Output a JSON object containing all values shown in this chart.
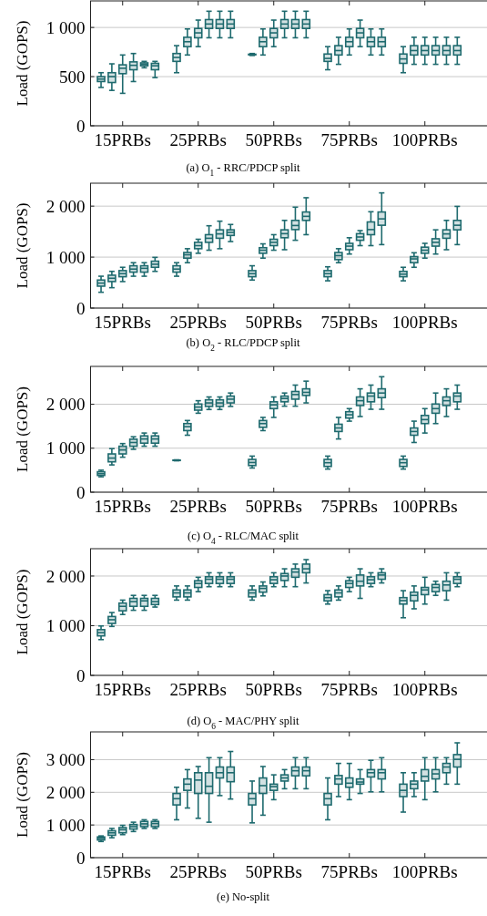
{
  "chart_data": [
    {
      "type": "box",
      "title": "(a) O$_{1}$ - RRC/PDCP split",
      "ylabel": "Load (GOPS)",
      "categories": [
        null,
        null,
        "15PRBs",
        null,
        null,
        null,
        null,
        null,
        null,
        "25PRBs",
        null,
        null,
        null,
        null,
        null,
        null,
        "50PRBs",
        null,
        null,
        null,
        null,
        null,
        null,
        "75PRBs",
        null,
        null,
        null,
        null,
        null,
        null,
        "100PRBs",
        null,
        null,
        null,
        null
      ],
      "ylim": [
        0,
        1270
      ],
      "yticks": [
        {
          "value": 0,
          "label": "0"
        },
        500,
        {
          "value": 1000,
          "label": "1 000"
        }
      ],
      "grid": "y",
      "color": "#1e6a6e",
      "boxes": [
        {
          "low": 390,
          "q1": 450,
          "median": 475,
          "q3": 500,
          "high": 540
        },
        {
          "low": 360,
          "q1": 440,
          "median": 500,
          "q3": 540,
          "high": 630
        },
        {
          "low": 330,
          "q1": 530,
          "median": 585,
          "q3": 620,
          "high": 720
        },
        {
          "low": 450,
          "q1": 570,
          "median": 615,
          "q3": 650,
          "high": 735
        },
        {
          "low": 590,
          "q1": 610,
          "median": 625,
          "q3": 640,
          "high": 655
        },
        {
          "low": 490,
          "q1": 570,
          "median": 610,
          "q3": 635,
          "high": 655
        },
        null,
        {
          "low": 540,
          "q1": 655,
          "median": 695,
          "q3": 735,
          "high": 815
        },
        {
          "low": 720,
          "q1": 805,
          "median": 855,
          "q3": 900,
          "high": 985
        },
        {
          "low": 805,
          "q1": 895,
          "median": 945,
          "q3": 990,
          "high": 1075
        },
        {
          "low": 895,
          "q1": 990,
          "median": 1035,
          "q3": 1080,
          "high": 1165
        },
        {
          "low": 895,
          "q1": 990,
          "median": 1035,
          "q3": 1080,
          "high": 1165
        },
        {
          "low": 895,
          "q1": 990,
          "median": 1035,
          "q3": 1080,
          "high": 1165
        },
        null,
        {
          "low": 715,
          "q1": 722,
          "median": 725,
          "q3": 728,
          "high": 735
        },
        {
          "low": 720,
          "q1": 805,
          "median": 855,
          "q3": 900,
          "high": 985
        },
        {
          "low": 805,
          "q1": 895,
          "median": 945,
          "q3": 990,
          "high": 1075
        },
        {
          "low": 895,
          "q1": 990,
          "median": 1035,
          "q3": 1080,
          "high": 1165
        },
        {
          "low": 895,
          "q1": 990,
          "median": 1035,
          "q3": 1080,
          "high": 1165
        },
        {
          "low": 895,
          "q1": 990,
          "median": 1035,
          "q3": 1080,
          "high": 1165
        },
        null,
        {
          "low": 570,
          "q1": 655,
          "median": 685,
          "q3": 730,
          "high": 805
        },
        {
          "low": 625,
          "q1": 720,
          "median": 765,
          "q3": 815,
          "high": 900
        },
        {
          "low": 720,
          "q1": 805,
          "median": 855,
          "q3": 900,
          "high": 985
        },
        {
          "low": 805,
          "q1": 895,
          "median": 945,
          "q3": 990,
          "high": 1075
        },
        {
          "low": 720,
          "q1": 805,
          "median": 855,
          "q3": 900,
          "high": 985
        },
        {
          "low": 720,
          "q1": 805,
          "median": 855,
          "q3": 900,
          "high": 985
        },
        null,
        {
          "low": 540,
          "q1": 635,
          "median": 680,
          "q3": 730,
          "high": 805
        },
        {
          "low": 625,
          "q1": 720,
          "median": 765,
          "q3": 815,
          "high": 900
        },
        {
          "low": 625,
          "q1": 720,
          "median": 765,
          "q3": 815,
          "high": 900
        },
        {
          "low": 625,
          "q1": 720,
          "median": 765,
          "q3": 815,
          "high": 900
        },
        {
          "low": 625,
          "q1": 720,
          "median": 765,
          "q3": 815,
          "high": 900
        },
        {
          "low": 625,
          "q1": 720,
          "median": 765,
          "q3": 815,
          "high": 900
        },
        null
      ]
    },
    {
      "type": "box",
      "title": "(b) O$_{2}$ - RLC/PDCP split",
      "ylabel": "Load (GOPS)",
      "categories": [
        null,
        null,
        "15PRBs",
        null,
        null,
        null,
        null,
        null,
        null,
        "25PRBs",
        null,
        null,
        null,
        null,
        null,
        null,
        "50PRBs",
        null,
        null,
        null,
        null,
        null,
        null,
        "75PRBs",
        null,
        null,
        null,
        null,
        null,
        null,
        "100PRBs",
        null,
        null,
        null,
        null
      ],
      "ylim": [
        0,
        2450
      ],
      "yticks": [
        {
          "value": 0,
          "label": "0"
        },
        {
          "value": 1000,
          "label": "1 000"
        },
        {
          "value": 2000,
          "label": "2 000"
        }
      ],
      "grid": "y",
      "color": "#1e6a6e",
      "boxes": [
        {
          "low": 310,
          "q1": 430,
          "median": 490,
          "q3": 550,
          "high": 625
        },
        {
          "low": 400,
          "q1": 520,
          "median": 585,
          "q3": 645,
          "high": 720
        },
        {
          "low": 520,
          "q1": 615,
          "median": 675,
          "q3": 735,
          "high": 800
        },
        {
          "low": 625,
          "q1": 705,
          "median": 765,
          "q3": 830,
          "high": 890
        },
        {
          "low": 625,
          "q1": 705,
          "median": 780,
          "q3": 830,
          "high": 890
        },
        {
          "low": 720,
          "q1": 800,
          "median": 860,
          "q3": 920,
          "high": 995
        },
        null,
        {
          "low": 625,
          "q1": 705,
          "median": 765,
          "q3": 830,
          "high": 890
        },
        {
          "low": 890,
          "q1": 980,
          "median": 1045,
          "q3": 1090,
          "high": 1165
        },
        {
          "low": 1075,
          "q1": 1165,
          "median": 1225,
          "q3": 1290,
          "high": 1350
        },
        {
          "low": 1135,
          "q1": 1290,
          "median": 1370,
          "q3": 1440,
          "high": 1615
        },
        {
          "low": 1165,
          "q1": 1370,
          "median": 1455,
          "q3": 1535,
          "high": 1705
        },
        {
          "low": 1305,
          "q1": 1425,
          "median": 1485,
          "q3": 1535,
          "high": 1640
        },
        null,
        {
          "low": 550,
          "q1": 615,
          "median": 675,
          "q3": 735,
          "high": 830
        },
        {
          "low": 980,
          "q1": 1075,
          "median": 1135,
          "q3": 1185,
          "high": 1260
        },
        {
          "low": 1135,
          "q1": 1225,
          "median": 1290,
          "q3": 1350,
          "high": 1440
        },
        {
          "low": 1145,
          "q1": 1380,
          "median": 1460,
          "q3": 1535,
          "high": 1720
        },
        {
          "low": 1330,
          "q1": 1540,
          "median": 1620,
          "q3": 1720,
          "high": 1980
        },
        {
          "low": 1440,
          "q1": 1720,
          "median": 1800,
          "q3": 1885,
          "high": 2165
        },
        null,
        {
          "low": 535,
          "q1": 615,
          "median": 675,
          "q3": 735,
          "high": 810
        },
        {
          "low": 890,
          "q1": 950,
          "median": 1030,
          "q3": 1090,
          "high": 1165
        },
        {
          "low": 1060,
          "q1": 1145,
          "median": 1215,
          "q3": 1270,
          "high": 1380
        },
        {
          "low": 1225,
          "q1": 1330,
          "median": 1395,
          "q3": 1460,
          "high": 1520
        },
        {
          "low": 1225,
          "q1": 1440,
          "median": 1540,
          "q3": 1690,
          "high": 1890
        },
        {
          "low": 1245,
          "q1": 1625,
          "median": 1750,
          "q3": 1885,
          "high": 2260
        },
        null,
        {
          "low": 535,
          "q1": 615,
          "median": 665,
          "q3": 720,
          "high": 800
        },
        {
          "low": 800,
          "q1": 890,
          "median": 965,
          "q3": 1010,
          "high": 1085
        },
        {
          "low": 980,
          "q1": 1075,
          "median": 1135,
          "q3": 1195,
          "high": 1270
        },
        {
          "low": 1060,
          "q1": 1215,
          "median": 1290,
          "q3": 1360,
          "high": 1535
        },
        {
          "low": 1145,
          "q1": 1370,
          "median": 1455,
          "q3": 1535,
          "high": 1720
        },
        {
          "low": 1245,
          "q1": 1535,
          "median": 1625,
          "q3": 1720,
          "high": 1995
        },
        null
      ]
    },
    {
      "type": "box",
      "title": "(c) O$_{4}$ - RLC/MAC split",
      "ylabel": "Load (GOPS)",
      "categories": [
        null,
        null,
        "15PRBs",
        null,
        null,
        null,
        null,
        null,
        null,
        "25PRBs",
        null,
        null,
        null,
        null,
        null,
        null,
        "50PRBs",
        null,
        null,
        null,
        null,
        null,
        null,
        "75PRBs",
        null,
        null,
        null,
        null,
        null,
        null,
        "100PRBs",
        null,
        null,
        null,
        null
      ],
      "ylim": [
        0,
        2860
      ],
      "yticks": [
        {
          "value": 0,
          "label": "0"
        },
        {
          "value": 1000,
          "label": "1 000"
        },
        {
          "value": 2000,
          "label": "2 000"
        }
      ],
      "grid": "y",
      "color": "#1e6a6e",
      "boxes": [
        {
          "low": 350,
          "q1": 380,
          "median": 420,
          "q3": 465,
          "high": 500
        },
        {
          "low": 620,
          "q1": 690,
          "median": 775,
          "q3": 870,
          "high": 990
        },
        {
          "low": 795,
          "q1": 870,
          "median": 960,
          "q3": 1045,
          "high": 1105
        },
        {
          "low": 975,
          "q1": 1045,
          "median": 1130,
          "q3": 1205,
          "high": 1260
        },
        {
          "low": 1045,
          "q1": 1115,
          "median": 1210,
          "q3": 1280,
          "high": 1345
        },
        {
          "low": 1045,
          "q1": 1115,
          "median": 1210,
          "q3": 1280,
          "high": 1345
        },
        null,
        {
          "low": 715,
          "q1": 722,
          "median": 726,
          "q3": 730,
          "high": 735
        },
        {
          "low": 1295,
          "q1": 1400,
          "median": 1490,
          "q3": 1560,
          "high": 1630
        },
        {
          "low": 1795,
          "q1": 1865,
          "median": 1935,
          "q3": 2005,
          "high": 2080
        },
        {
          "low": 1880,
          "q1": 1950,
          "median": 2030,
          "q3": 2100,
          "high": 2165
        },
        {
          "low": 1880,
          "q1": 1950,
          "median": 2030,
          "q3": 2100,
          "high": 2165
        },
        {
          "low": 1950,
          "q1": 2030,
          "median": 2115,
          "q3": 2185,
          "high": 2255
        },
        null,
        {
          "low": 550,
          "q1": 605,
          "median": 675,
          "q3": 745,
          "high": 820
        },
        {
          "low": 1400,
          "q1": 1475,
          "median": 1560,
          "q3": 1630,
          "high": 1700
        },
        {
          "low": 1700,
          "q1": 1900,
          "median": 1985,
          "q3": 2055,
          "high": 2165
        },
        {
          "low": 1955,
          "q1": 2055,
          "median": 2130,
          "q3": 2185,
          "high": 2255
        },
        {
          "low": 1955,
          "q1": 2115,
          "median": 2220,
          "q3": 2290,
          "high": 2435
        },
        {
          "low": 2030,
          "q1": 2200,
          "median": 2270,
          "q3": 2350,
          "high": 2525
        },
        null,
        {
          "low": 525,
          "q1": 585,
          "median": 670,
          "q3": 745,
          "high": 820
        },
        {
          "low": 1210,
          "q1": 1380,
          "median": 1460,
          "q3": 1545,
          "high": 1700
        },
        {
          "low": 1615,
          "q1": 1685,
          "median": 1760,
          "q3": 1830,
          "high": 1900
        },
        {
          "low": 1720,
          "q1": 1970,
          "median": 2080,
          "q3": 2165,
          "high": 2350
        },
        {
          "low": 1885,
          "q1": 2055,
          "median": 2185,
          "q3": 2255,
          "high": 2435
        },
        {
          "low": 1885,
          "q1": 2150,
          "median": 2255,
          "q3": 2350,
          "high": 2625
        },
        null,
        {
          "low": 525,
          "q1": 585,
          "median": 670,
          "q3": 745,
          "high": 820
        },
        {
          "low": 1130,
          "q1": 1295,
          "median": 1380,
          "q3": 1460,
          "high": 1615
        },
        {
          "low": 1345,
          "q1": 1560,
          "median": 1650,
          "q3": 1745,
          "high": 1900
        },
        {
          "low": 1560,
          "q1": 1795,
          "median": 1900,
          "q3": 2005,
          "high": 2255
        },
        {
          "low": 1720,
          "q1": 1970,
          "median": 2080,
          "q3": 2165,
          "high": 2350
        },
        {
          "low": 1885,
          "q1": 2055,
          "median": 2185,
          "q3": 2255,
          "high": 2435
        },
        null
      ]
    },
    {
      "type": "box",
      "title": "(d) O$_{6}$ - MAC/PHY split",
      "ylabel": "Load (GOPS)",
      "categories": [
        null,
        null,
        "15PRBs",
        null,
        null,
        null,
        null,
        null,
        null,
        "25PRBs",
        null,
        null,
        null,
        null,
        null,
        null,
        "50PRBs",
        null,
        null,
        null,
        null,
        null,
        null,
        "75PRBs",
        null,
        null,
        null,
        null,
        null,
        null,
        "100PRBs",
        null,
        null,
        null,
        null
      ],
      "ylim": [
        0,
        2550
      ],
      "yticks": [
        {
          "value": 0,
          "label": "0"
        },
        {
          "value": 1000,
          "label": "1 000"
        },
        {
          "value": 2000,
          "label": "2 000"
        }
      ],
      "grid": "y",
      "color": "#1e6a6e",
      "boxes": [
        {
          "low": 720,
          "q1": 795,
          "median": 860,
          "q3": 920,
          "high": 995
        },
        {
          "low": 985,
          "q1": 1045,
          "median": 1120,
          "q3": 1185,
          "high": 1265
        },
        {
          "low": 1225,
          "q1": 1300,
          "median": 1390,
          "q3": 1455,
          "high": 1515
        },
        {
          "low": 1310,
          "q1": 1390,
          "median": 1485,
          "q3": 1550,
          "high": 1610
        },
        {
          "low": 1310,
          "q1": 1390,
          "median": 1500,
          "q3": 1550,
          "high": 1610
        },
        {
          "low": 1375,
          "q1": 1425,
          "median": 1485,
          "q3": 1550,
          "high": 1610
        },
        null,
        {
          "low": 1515,
          "q1": 1580,
          "median": 1660,
          "q3": 1720,
          "high": 1800
        },
        {
          "low": 1515,
          "q1": 1580,
          "median": 1660,
          "q3": 1720,
          "high": 1800
        },
        {
          "low": 1685,
          "q1": 1770,
          "median": 1850,
          "q3": 1905,
          "high": 1975
        },
        {
          "low": 1785,
          "q1": 1850,
          "median": 1935,
          "q3": 1985,
          "high": 2065
        },
        {
          "low": 1785,
          "q1": 1850,
          "median": 1935,
          "q3": 1985,
          "high": 2065
        },
        {
          "low": 1785,
          "q1": 1850,
          "median": 1935,
          "q3": 1985,
          "high": 2065
        },
        null,
        {
          "low": 1515,
          "q1": 1580,
          "median": 1660,
          "q3": 1720,
          "high": 1800
        },
        {
          "low": 1600,
          "q1": 1675,
          "median": 1750,
          "q3": 1800,
          "high": 1880
        },
        {
          "low": 1785,
          "q1": 1850,
          "median": 1925,
          "q3": 1985,
          "high": 2065
        },
        {
          "low": 1785,
          "q1": 1910,
          "median": 2000,
          "q3": 2050,
          "high": 2145
        },
        {
          "low": 1785,
          "q1": 1975,
          "median": 2080,
          "q3": 2145,
          "high": 2240
        },
        {
          "low": 1860,
          "q1": 2065,
          "median": 2145,
          "q3": 2240,
          "high": 2330
        },
        null,
        {
          "low": 1435,
          "q1": 1500,
          "median": 1565,
          "q3": 1625,
          "high": 1705
        },
        {
          "low": 1515,
          "q1": 1580,
          "median": 1660,
          "q3": 1720,
          "high": 1800
        },
        {
          "low": 1685,
          "q1": 1770,
          "median": 1850,
          "q3": 1905,
          "high": 1975
        },
        {
          "low": 1550,
          "q1": 1800,
          "median": 1895,
          "q3": 2020,
          "high": 2145
        },
        {
          "low": 1785,
          "q1": 1850,
          "median": 1925,
          "q3": 1985,
          "high": 2065
        },
        {
          "low": 1860,
          "q1": 1935,
          "median": 2020,
          "q3": 2065,
          "high": 2145
        },
        null,
        {
          "low": 1160,
          "q1": 1435,
          "median": 1505,
          "q3": 1565,
          "high": 1705
        },
        {
          "low": 1340,
          "q1": 1500,
          "median": 1610,
          "q3": 1675,
          "high": 1800
        },
        {
          "low": 1435,
          "q1": 1625,
          "median": 1720,
          "q3": 1770,
          "high": 1975
        },
        {
          "low": 1610,
          "q1": 1685,
          "median": 1770,
          "q3": 1830,
          "high": 1895
        },
        {
          "low": 1515,
          "q1": 1705,
          "median": 1820,
          "q3": 1895,
          "high": 2065
        },
        {
          "low": 1785,
          "q1": 1850,
          "median": 1935,
          "q3": 1985,
          "high": 2065
        },
        null
      ]
    },
    {
      "type": "box",
      "title": "(e) No-split",
      "ylabel": "Load (GOPS)",
      "categories": [
        null,
        null,
        "15PRBs",
        null,
        null,
        null,
        null,
        null,
        null,
        "25PRBs",
        null,
        null,
        null,
        null,
        null,
        null,
        "50PRBs",
        null,
        null,
        null,
        null,
        null,
        null,
        "75PRBs",
        null,
        null,
        null,
        null,
        null,
        null,
        "100PRBs",
        null,
        null,
        null,
        null
      ],
      "ylim": [
        0,
        3850
      ],
      "yticks": [
        {
          "value": 0,
          "label": "0"
        },
        {
          "value": 1000,
          "label": "1 000"
        },
        {
          "value": 2000,
          "label": "2 000"
        },
        {
          "value": 3000,
          "label": "3 000"
        }
      ],
      "grid": "y",
      "color": "#1e6a6e",
      "boxes": [
        {
          "low": 495,
          "q1": 540,
          "median": 590,
          "q3": 635,
          "high": 665
        },
        {
          "low": 610,
          "q1": 685,
          "median": 760,
          "q3": 825,
          "high": 895
        },
        {
          "low": 705,
          "q1": 760,
          "median": 855,
          "q3": 920,
          "high": 990
        },
        {
          "low": 800,
          "q1": 875,
          "median": 950,
          "q3": 1015,
          "high": 1085
        },
        {
          "low": 895,
          "q1": 950,
          "median": 1035,
          "q3": 1110,
          "high": 1160
        },
        {
          "low": 895,
          "q1": 950,
          "median": 1045,
          "q3": 1110,
          "high": 1160
        },
        null,
        {
          "low": 1160,
          "q1": 1615,
          "median": 1805,
          "q3": 1965,
          "high": 2155
        },
        {
          "low": 1520,
          "q1": 2060,
          "median": 2250,
          "q3": 2410,
          "high": 2695
        },
        {
          "low": 1205,
          "q1": 1965,
          "median": 2375,
          "q3": 2600,
          "high": 2790
        },
        {
          "low": 1085,
          "q1": 1965,
          "median": 2185,
          "q3": 2600,
          "high": 3060
        },
        {
          "low": 1900,
          "q1": 2440,
          "median": 2600,
          "q3": 2775,
          "high": 3060
        },
        {
          "low": 1795,
          "q1": 2325,
          "median": 2600,
          "q3": 2775,
          "high": 3250
        },
        null,
        {
          "low": 1065,
          "q1": 1615,
          "median": 1805,
          "q3": 1965,
          "high": 2345
        },
        {
          "low": 1300,
          "q1": 1965,
          "median": 2205,
          "q3": 2440,
          "high": 2790
        },
        {
          "low": 1775,
          "q1": 2060,
          "median": 2175,
          "q3": 2250,
          "high": 2535
        },
        {
          "low": 2110,
          "q1": 2345,
          "median": 2440,
          "q3": 2535,
          "high": 2695
        },
        {
          "low": 2110,
          "q1": 2505,
          "median": 2660,
          "q3": 2775,
          "high": 3060
        },
        {
          "low": 2110,
          "q1": 2505,
          "median": 2660,
          "q3": 2775,
          "high": 3060
        },
        null,
        {
          "low": 1160,
          "q1": 1615,
          "median": 1805,
          "q3": 1965,
          "high": 2440
        },
        {
          "low": 1870,
          "q1": 2250,
          "median": 2410,
          "q3": 2515,
          "high": 2885
        },
        {
          "low": 1775,
          "q1": 2155,
          "median": 2280,
          "q3": 2440,
          "high": 2885
        },
        {
          "low": 1965,
          "q1": 2250,
          "median": 2315,
          "q3": 2410,
          "high": 2695
        },
        {
          "low": 2015,
          "q1": 2470,
          "median": 2600,
          "q3": 2695,
          "high": 2980
        },
        {
          "low": 2015,
          "q1": 2410,
          "median": 2600,
          "q3": 2695,
          "high": 3060
        },
        null,
        {
          "low": 1395,
          "q1": 1870,
          "median": 2060,
          "q3": 2250,
          "high": 2600
        },
        {
          "low": 1870,
          "q1": 2110,
          "median": 2250,
          "q3": 2345,
          "high": 2600
        },
        {
          "low": 1775,
          "q1": 2345,
          "median": 2490,
          "q3": 2695,
          "high": 3060
        },
        {
          "low": 2015,
          "q1": 2410,
          "median": 2565,
          "q3": 2695,
          "high": 3060
        },
        {
          "low": 2250,
          "q1": 2600,
          "median": 2775,
          "q3": 2885,
          "high": 3060
        },
        {
          "low": 2250,
          "q1": 2775,
          "median": 3010,
          "q3": 3155,
          "high": 3515
        },
        null
      ]
    }
  ]
}
